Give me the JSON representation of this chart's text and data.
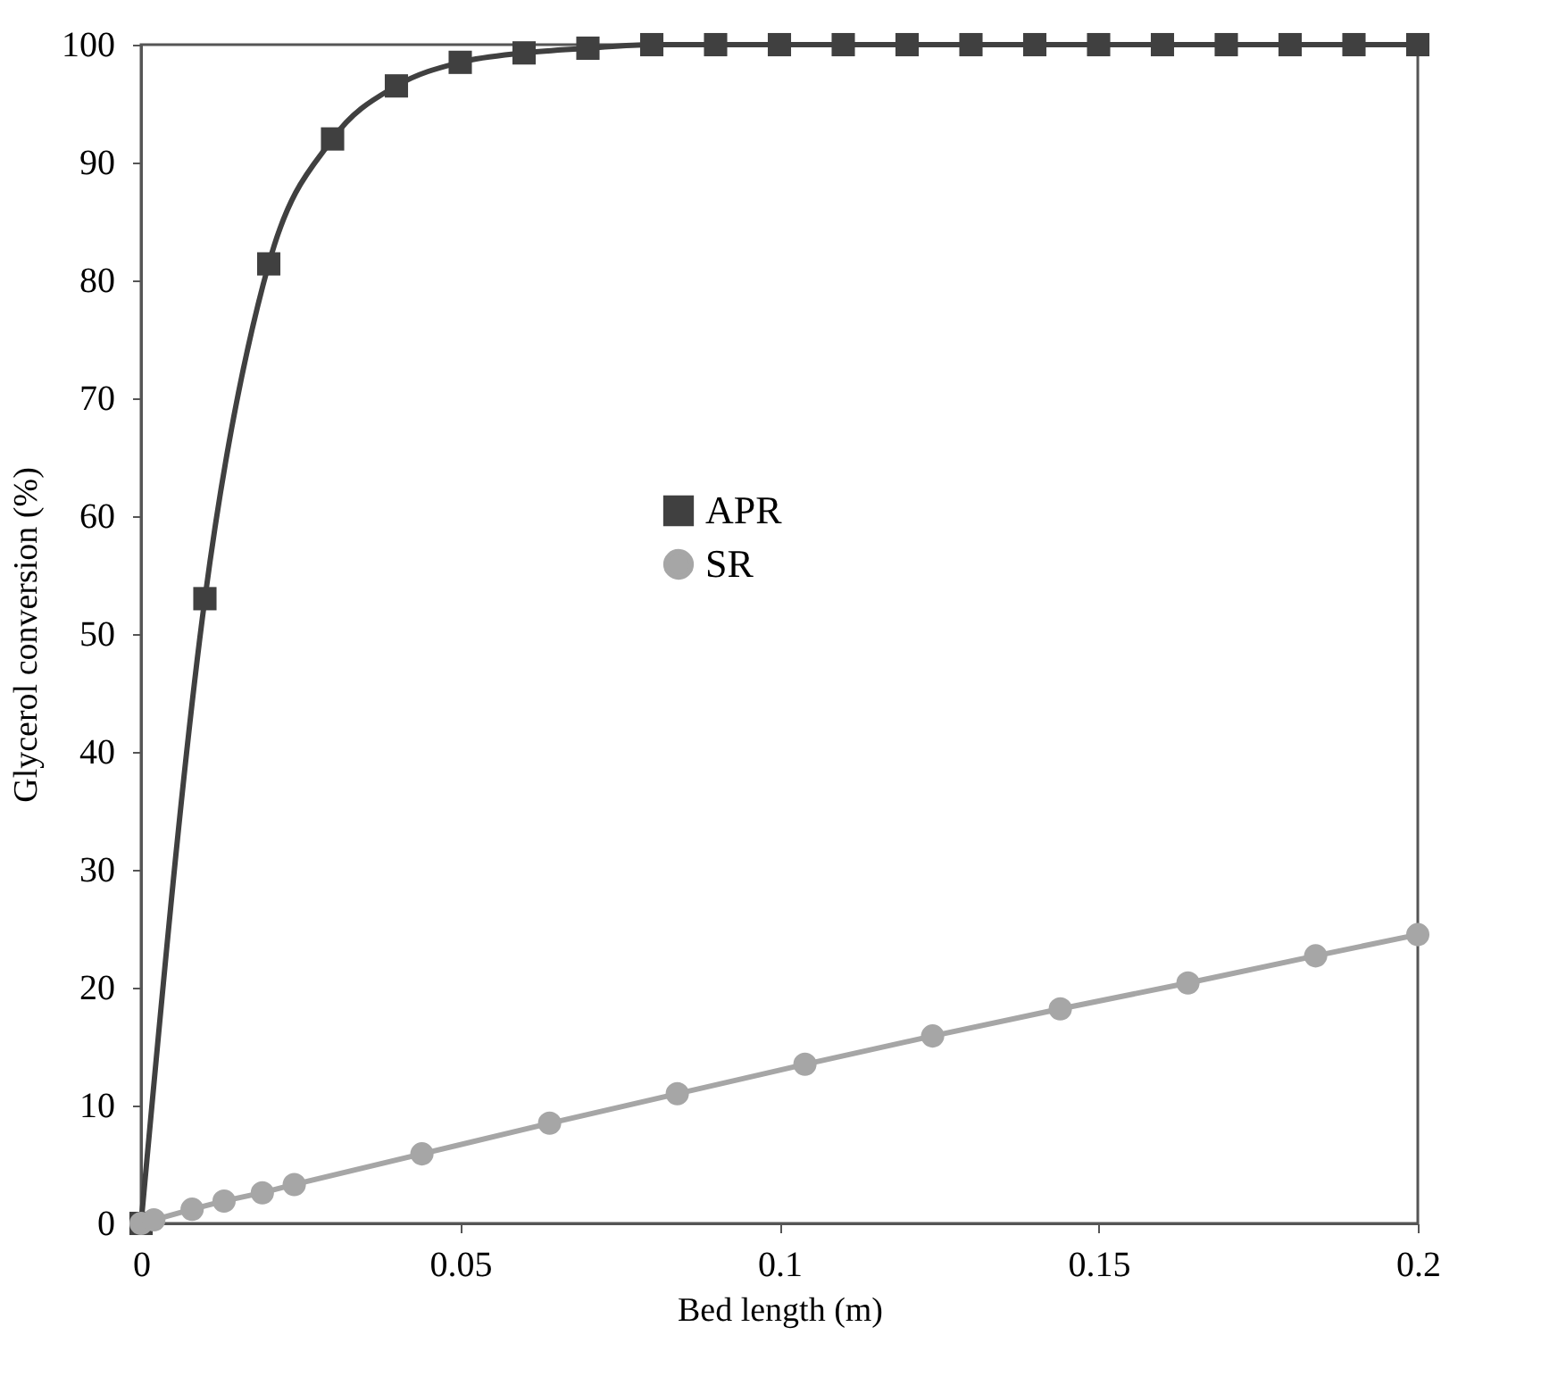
{
  "chart_data": {
    "type": "line",
    "xlabel": "Bed length (m)",
    "ylabel": "Glycerol conversion (%)",
    "xlim": [
      0,
      0.2
    ],
    "xticks": [
      0,
      0.05,
      0.1,
      0.15,
      0.2
    ],
    "ylim": [
      0,
      100
    ],
    "yticks": [
      0,
      10,
      20,
      30,
      40,
      50,
      60,
      70,
      80,
      90,
      100
    ],
    "grid": false,
    "legend": "center",
    "line_style": "solid",
    "series": [
      {
        "name": "APR",
        "color": "#404040",
        "marker": "square",
        "x": [
          0,
          0.01,
          0.02,
          0.03,
          0.04,
          0.05,
          0.06,
          0.07,
          0.08,
          0.09,
          0.1,
          0.11,
          0.12,
          0.13,
          0.14,
          0.15,
          0.16,
          0.17,
          0.18,
          0.19,
          0.2
        ],
        "values": [
          0,
          53,
          81.4,
          92,
          96.5,
          98.5,
          99.3,
          99.7,
          100,
          100,
          100,
          100,
          100,
          100,
          100,
          100,
          100,
          100,
          100,
          100,
          100
        ]
      },
      {
        "name": "SR",
        "color": "#a6a6a6",
        "marker": "circle",
        "x": [
          0,
          0.002,
          0.008,
          0.013,
          0.019,
          0.024,
          0.044,
          0.064,
          0.084,
          0.104,
          0.124,
          0.144,
          0.164,
          0.184,
          0.2
        ],
        "values": [
          0,
          0.3,
          1.2,
          1.9,
          2.6,
          3.3,
          5.9,
          8.5,
          11,
          13.5,
          15.9,
          18.2,
          20.4,
          22.7,
          24.5
        ]
      }
    ]
  }
}
